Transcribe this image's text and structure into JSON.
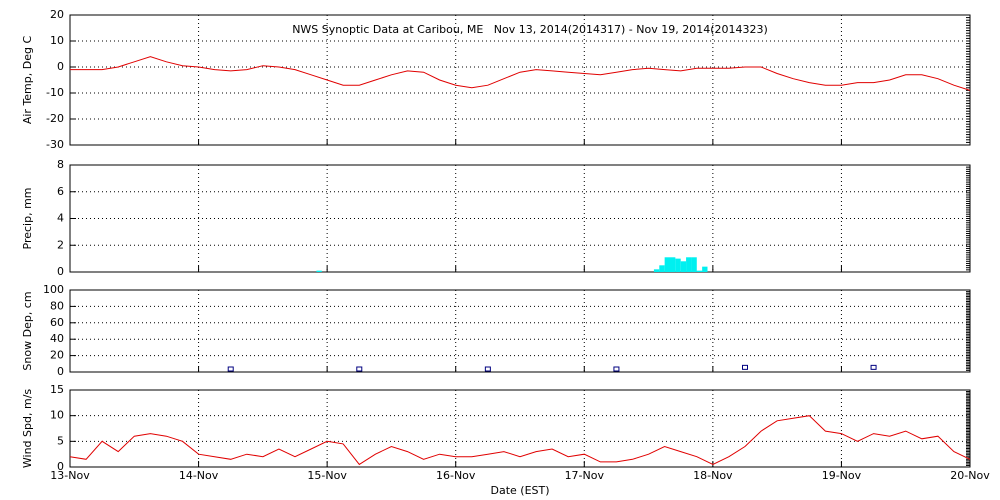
{
  "chart_data": [
    {
      "type": "line",
      "title": "NWS Synoptic Data at Caribou, ME   Nov 13, 2014(2014317) - Nov 19, 2014(2014323)",
      "ylabel": "Air Temp, Deg C",
      "color": "#e00000",
      "x": [
        0,
        3,
        6,
        9,
        12,
        15,
        18,
        21,
        24,
        27,
        30,
        33,
        36,
        39,
        42,
        45,
        48,
        51,
        54,
        57,
        60,
        63,
        66,
        69,
        72,
        75,
        78,
        81,
        84,
        87,
        90,
        93,
        96,
        99,
        102,
        105,
        108,
        111,
        114,
        117,
        120,
        123,
        126,
        129,
        132,
        135,
        138,
        141,
        144,
        147,
        150,
        153,
        156,
        159,
        162,
        165,
        168
      ],
      "values": [
        -1,
        -1,
        -1,
        0,
        2,
        4,
        2,
        0.5,
        0,
        -1,
        -1.5,
        -1,
        0.5,
        0,
        -1,
        -3,
        -5,
        -7,
        -7,
        -5,
        -3,
        -1.5,
        -2,
        -5,
        -7,
        -8,
        -7,
        -4.5,
        -2,
        -1,
        -1.5,
        -2,
        -2.5,
        -3,
        -2,
        -1,
        -0.5,
        -1,
        -1.5,
        -0.5,
        -0.5,
        -0.5,
        0,
        0,
        -2.5,
        -4.5,
        -6,
        -7,
        -7,
        -6,
        -6,
        -5,
        -3,
        -3,
        -4.5,
        -7,
        -9
      ],
      "xlim": [
        0,
        168
      ],
      "xticks": [
        0,
        24,
        48,
        72,
        96,
        120,
        144,
        168
      ],
      "ylim": [
        -30,
        20
      ],
      "yticks": [
        -30,
        -20,
        -10,
        0,
        10,
        20
      ],
      "grid": true
    },
    {
      "type": "bar",
      "ylabel": "Precip, mm",
      "color": "#00f0f0",
      "x": [
        46,
        109,
        110,
        111,
        112,
        113,
        114,
        115,
        116,
        117,
        118
      ],
      "values": [
        0.1,
        0.2,
        0.5,
        1.1,
        1.1,
        1.0,
        0.8,
        1.1,
        1.1,
        0.1,
        0.4
      ],
      "xlim": [
        0,
        168
      ],
      "xticks": [
        0,
        24,
        48,
        72,
        96,
        120,
        144,
        168
      ],
      "ylim": [
        0,
        8
      ],
      "yticks": [
        0,
        2,
        4,
        6,
        8
      ],
      "grid": true
    },
    {
      "type": "scatter",
      "ylabel": "Snow Dep, cm",
      "color": "#000080",
      "x": [
        30,
        54,
        78,
        102,
        126,
        150
      ],
      "values": [
        0,
        0,
        0,
        0,
        2,
        2
      ],
      "xlim": [
        0,
        168
      ],
      "xticks": [
        0,
        24,
        48,
        72,
        96,
        120,
        144,
        168
      ],
      "ylim": [
        0,
        100
      ],
      "yticks": [
        0,
        20,
        40,
        60,
        80,
        100
      ],
      "grid": true
    },
    {
      "type": "line",
      "ylabel": "Wind Spd, m/s",
      "xlabel": "Date (EST)",
      "color": "#e00000",
      "x": [
        0,
        3,
        6,
        9,
        12,
        15,
        18,
        21,
        24,
        27,
        30,
        33,
        36,
        39,
        42,
        45,
        48,
        51,
        54,
        57,
        60,
        63,
        66,
        69,
        72,
        75,
        78,
        81,
        84,
        87,
        90,
        93,
        96,
        99,
        102,
        105,
        108,
        111,
        114,
        117,
        120,
        123,
        126,
        129,
        132,
        135,
        138,
        141,
        144,
        147,
        150,
        153,
        156,
        159,
        162,
        165,
        168
      ],
      "values": [
        2,
        1.5,
        5,
        3,
        6,
        6.5,
        6,
        5,
        2.5,
        2,
        1.5,
        2.5,
        2,
        3.5,
        2,
        3.5,
        5,
        4.5,
        0.5,
        2.5,
        4,
        3,
        1.5,
        2.5,
        2,
        2,
        2.5,
        3,
        2,
        3,
        3.5,
        2,
        2.5,
        1,
        1,
        1.5,
        2.5,
        4,
        3,
        2,
        0.5,
        2,
        4,
        7,
        9,
        9.5,
        10,
        7,
        6.5,
        5,
        6.5,
        6,
        7,
        5.5,
        6,
        3,
        1.5
      ],
      "xlim": [
        0,
        168
      ],
      "xticks": [
        {
          "value": 0,
          "label": "13-Nov"
        },
        {
          "value": 24,
          "label": "14-Nov"
        },
        {
          "value": 48,
          "label": "15-Nov"
        },
        {
          "value": 72,
          "label": "16-Nov"
        },
        {
          "value": 96,
          "label": "17-Nov"
        },
        {
          "value": 120,
          "label": "18-Nov"
        },
        {
          "value": 144,
          "label": "19-Nov"
        },
        {
          "value": 168,
          "label": "20-Nov"
        }
      ],
      "ylim": [
        0,
        15
      ],
      "yticks": [
        0,
        5,
        10,
        15
      ],
      "grid": true
    }
  ]
}
